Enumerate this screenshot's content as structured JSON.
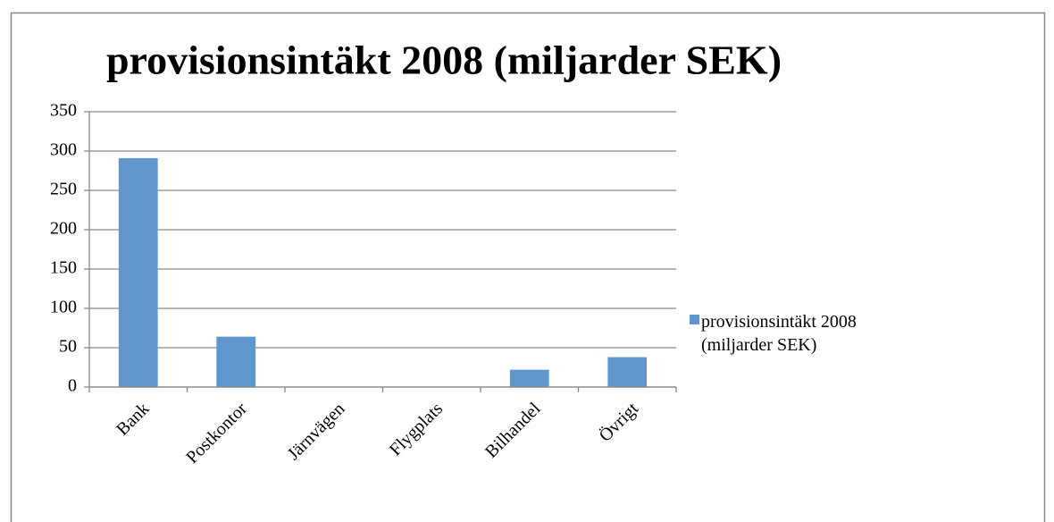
{
  "chart_data": {
    "type": "bar",
    "title": "provisionsintäkt 2008 (miljarder SEK)",
    "categories": [
      "Bank",
      "Postkontor",
      "Järnvägen",
      "Flygplats",
      "Bilhandel",
      "Övrigt"
    ],
    "series": [
      {
        "name": "provisionsintäkt 2008 (miljarder SEK)",
        "color": "#6096cd",
        "values": [
          291,
          64,
          0,
          0,
          22,
          38
        ]
      }
    ],
    "ylim": [
      0,
      350
    ],
    "yticks": [
      0,
      50,
      100,
      150,
      200,
      250,
      300,
      350
    ],
    "grid": true,
    "legend": "right"
  }
}
